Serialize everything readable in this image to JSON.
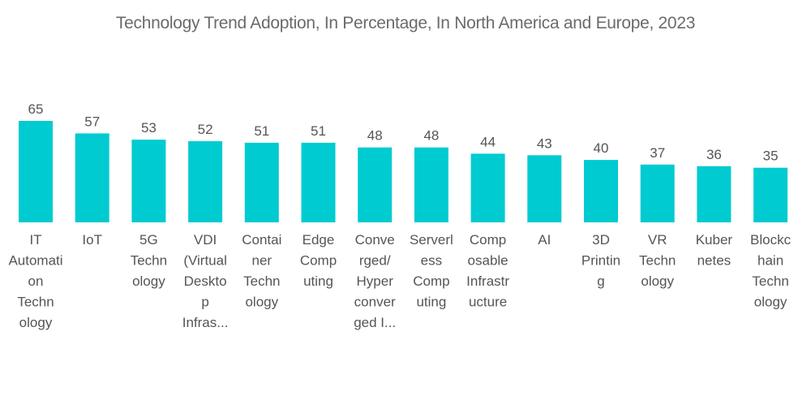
{
  "chart_data": {
    "type": "bar",
    "title": "Technology Trend Adoption, In Percentage, In North America and Europe, 2023",
    "xlabel": "",
    "ylabel": "",
    "ylim": [
      0,
      65
    ],
    "grid": false,
    "legend": "none",
    "bar_color": "#00cbd1",
    "categories": [
      "IT Automation Technology",
      "IoT",
      "5G Technology",
      "VDI (Virtual Desktop Infras...",
      "Container Technology",
      "Edge Computing",
      "Converged/ Hyperconverged I...",
      "Serverless Computing",
      "Composable Infrastructure",
      "AI",
      "3D Printing",
      "VR Technology",
      "Kubernetes",
      "Blockchain Technology"
    ],
    "category_label_lines": [
      [
        "IT",
        "Automati",
        "on",
        "Techn",
        "ology"
      ],
      [
        "IoT"
      ],
      [
        "5G",
        "Techn",
        "ology"
      ],
      [
        "VDI",
        "(Virtual",
        "Deskto",
        "p",
        "Infras..."
      ],
      [
        "Contai",
        "ner",
        "Techn",
        "ology"
      ],
      [
        "Edge",
        "Comp",
        "uting"
      ],
      [
        "Conve",
        "rged/",
        "Hyper",
        "conver",
        "ged I..."
      ],
      [
        "Serverl",
        "ess",
        "Comp",
        "uting"
      ],
      [
        "Comp",
        "osable",
        "Infrastr",
        "ucture"
      ],
      [
        "AI"
      ],
      [
        "3D",
        "Printin",
        "g"
      ],
      [
        "VR",
        "Techn",
        "ology"
      ],
      [
        "Kuber",
        "netes"
      ],
      [
        "Blockc",
        "hain",
        "Techn",
        "ology"
      ]
    ],
    "values": [
      65,
      57,
      53,
      52,
      51,
      51,
      48,
      48,
      44,
      43,
      40,
      37,
      36,
      35
    ]
  }
}
